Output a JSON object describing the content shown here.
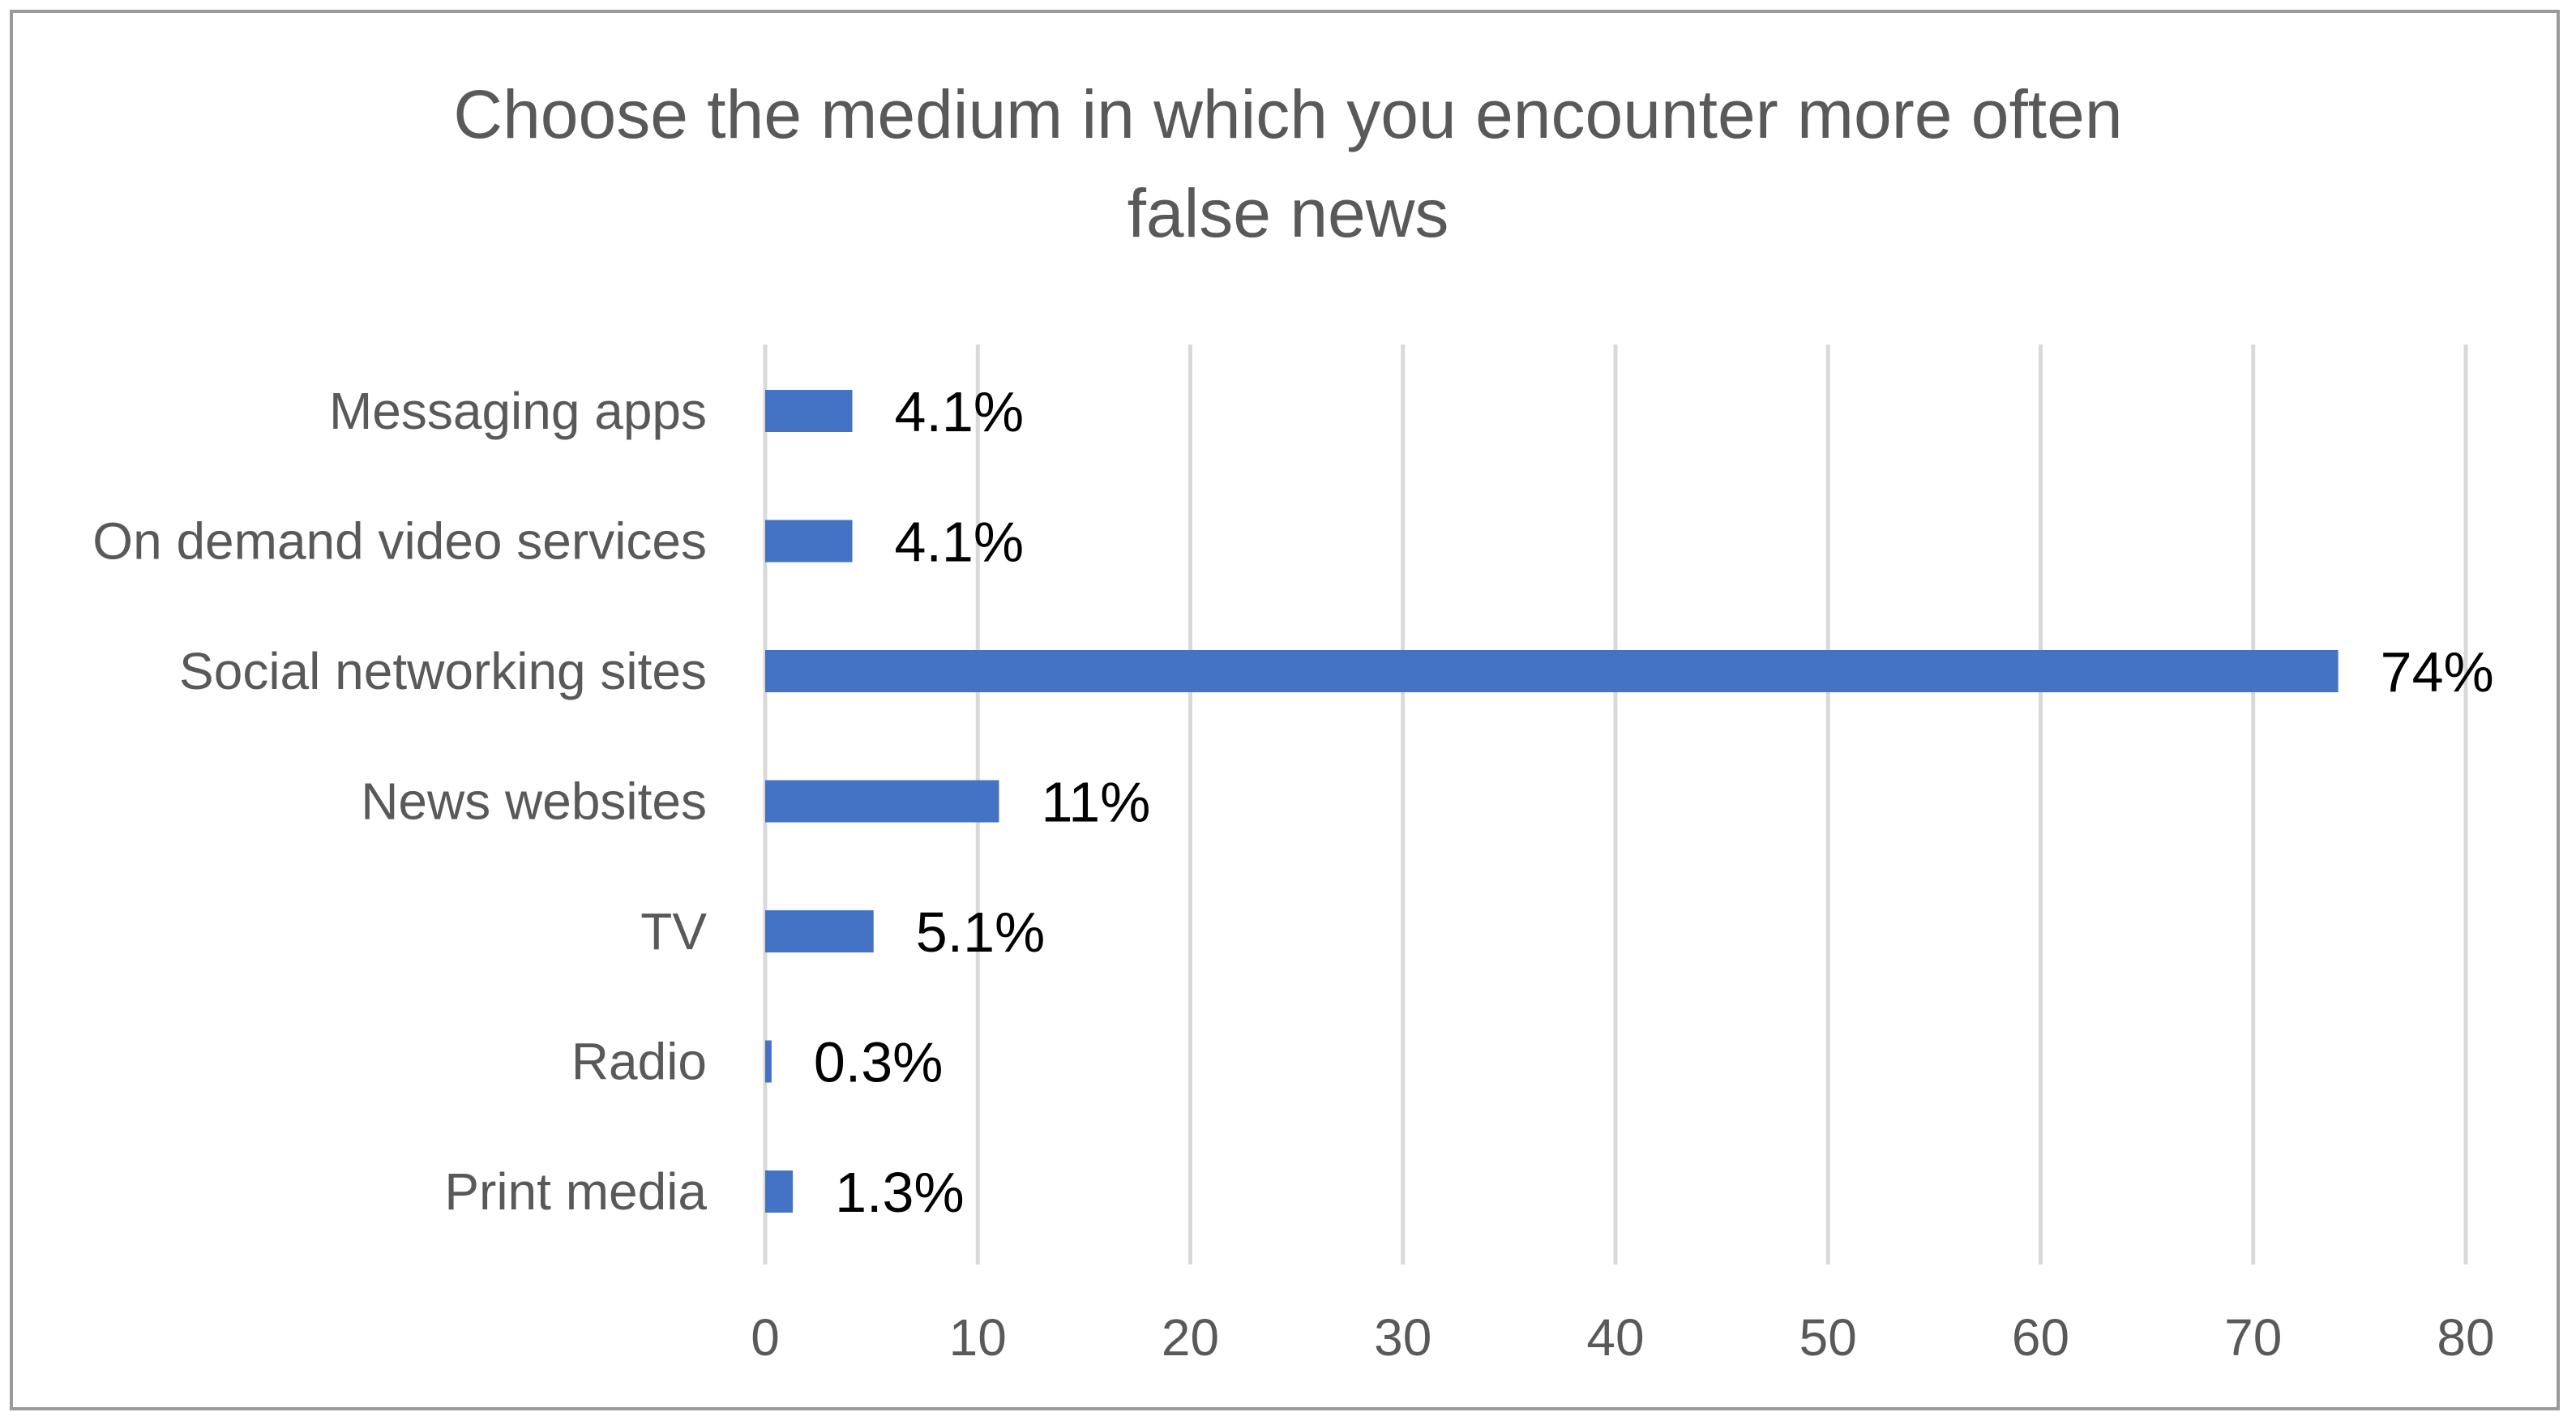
{
  "chart_data": {
    "type": "bar",
    "orientation": "horizontal",
    "title_lines": [
      "Choose the medium in which you encounter more often",
      "false news"
    ],
    "categories": [
      "Messaging apps",
      "On demand video services",
      "Social networking sites",
      "News websites",
      "TV",
      "Radio",
      "Print media"
    ],
    "values": [
      4.1,
      4.1,
      74,
      11,
      5.1,
      0.3,
      1.3
    ],
    "data_labels": [
      "4.1%",
      "4.1%",
      "74%",
      "11%",
      "5.1%",
      "0.3%",
      "1.3%"
    ],
    "xlim": [
      0,
      80
    ],
    "xticks": [
      "0",
      "10",
      "20",
      "30",
      "40",
      "50",
      "60",
      "70",
      "80"
    ],
    "grid": true,
    "legend": "none",
    "bar_color": "#4472c4"
  }
}
